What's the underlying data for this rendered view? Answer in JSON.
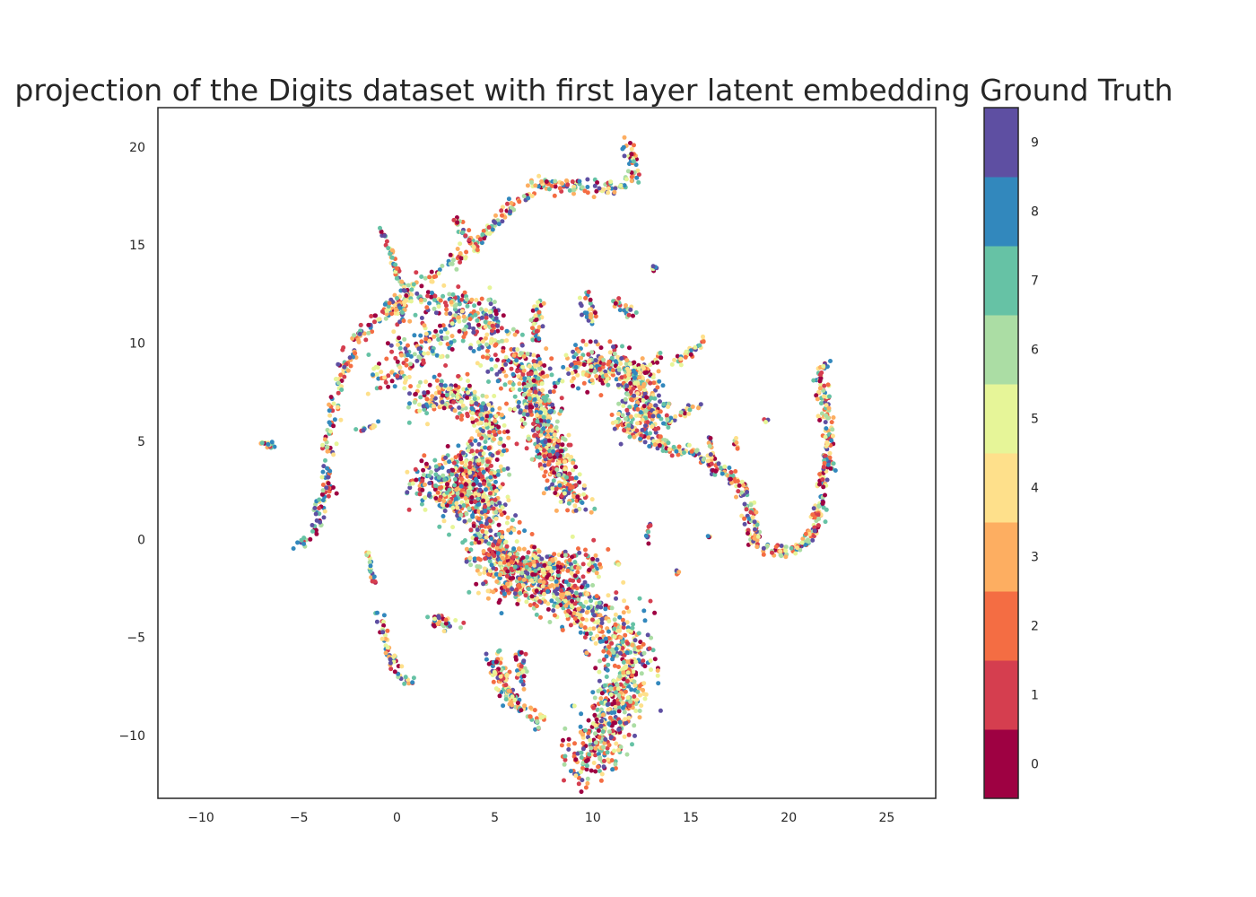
{
  "chart_data": {
    "type": "scatter",
    "title": "projection of the Digits dataset with first layer latent embedding Ground Truth",
    "xlabel": "",
    "ylabel": "",
    "xlim": [
      -12.2,
      27.5
    ],
    "ylim": [
      -13.2,
      22.0
    ],
    "x_ticks": [
      -10,
      -5,
      0,
      5,
      10,
      15,
      20,
      25
    ],
    "y_ticks": [
      -10,
      -5,
      0,
      5,
      10,
      15,
      20
    ],
    "x_tick_labels": [
      "−10",
      "−5",
      "0",
      "5",
      "10",
      "15",
      "20",
      "25"
    ],
    "y_tick_labels": [
      "−10",
      "−5",
      "0",
      "5",
      "10",
      "15",
      "20"
    ],
    "grid": false,
    "colorbar": {
      "labels": [
        "0",
        "1",
        "2",
        "3",
        "4",
        "5",
        "6",
        "7",
        "8",
        "9"
      ],
      "colors": [
        "#9e0142",
        "#d53e4f",
        "#f46d43",
        "#fdae61",
        "#fee08b",
        "#e6f598",
        "#abdda4",
        "#66c2a5",
        "#3288bd",
        "#5e4fa2"
      ],
      "range": [
        -0.5,
        9.5
      ]
    },
    "point_classes": "labels 0-9 mixed uniformly throughout all clusters",
    "structures": [
      {
        "name": "upper-arc",
        "path": [
          [
            -5,
            -0.4
          ],
          [
            -4.2,
            0.5
          ],
          [
            -3.6,
            2.5
          ],
          [
            -3.5,
            5
          ],
          [
            -3,
            8
          ],
          [
            -2,
            10.3
          ],
          [
            -0.5,
            11.8
          ],
          [
            1.5,
            13.3
          ],
          [
            3,
            14.2
          ],
          [
            4.5,
            15.5
          ],
          [
            6,
            17.2
          ],
          [
            7.5,
            18.2
          ],
          [
            9.5,
            17.9
          ],
          [
            11,
            17.8
          ],
          [
            12,
            18.5
          ],
          [
            12.1,
            19.5
          ],
          [
            11.5,
            20.4
          ]
        ],
        "width": 0.35,
        "n": 430
      },
      {
        "name": "upper-band",
        "path": [
          [
            -1,
            8
          ],
          [
            1,
            9.5
          ],
          [
            3,
            11
          ],
          [
            5,
            10.5
          ],
          [
            6,
            8.5
          ],
          [
            7,
            6.5
          ]
        ],
        "width": 1.2,
        "n": 340
      },
      {
        "name": "upper-band-2",
        "path": [
          [
            -0.5,
            11.5
          ],
          [
            2,
            12.5
          ],
          [
            4,
            12
          ],
          [
            5,
            11
          ]
        ],
        "width": 0.7,
        "n": 150
      },
      {
        "name": "left-spike",
        "path": [
          [
            -0.8,
            15.8
          ],
          [
            0,
            13.5
          ],
          [
            0.7,
            12
          ]
        ],
        "width": 0.2,
        "n": 50
      },
      {
        "name": "spike-3",
        "path": [
          [
            3,
            16.3
          ],
          [
            3.8,
            15
          ]
        ],
        "width": 0.2,
        "n": 25
      },
      {
        "name": "main-body",
        "path": [
          [
            1.5,
            3
          ],
          [
            3,
            2
          ],
          [
            4,
            4
          ],
          [
            4.5,
            1
          ],
          [
            5,
            -1
          ],
          [
            6,
            -2.3
          ],
          [
            8,
            -2.5
          ],
          [
            9.5,
            -3.3
          ],
          [
            11,
            -4.5
          ],
          [
            11.8,
            -5.5
          ],
          [
            11.8,
            -7
          ],
          [
            11,
            -9
          ],
          [
            10.3,
            -10.5
          ],
          [
            9.6,
            -11.7
          ]
        ],
        "width": 1.35,
        "n": 1700
      },
      {
        "name": "body-bottom-lobe",
        "path": [
          [
            5.5,
            -1
          ],
          [
            8,
            -1.5
          ],
          [
            10,
            -1
          ]
        ],
        "width": 0.8,
        "n": 200
      },
      {
        "name": "top-left-block",
        "path": [
          [
            1,
            7
          ],
          [
            3,
            7.5
          ],
          [
            4.5,
            6.5
          ],
          [
            5,
            5
          ]
        ],
        "width": 0.9,
        "n": 260
      },
      {
        "name": "central-cluster",
        "path": [
          [
            7,
            9
          ],
          [
            7.3,
            6
          ],
          [
            8,
            4
          ],
          [
            8.8,
            2.5
          ],
          [
            9.2,
            1.8
          ]
        ],
        "width": 0.95,
        "n": 520
      },
      {
        "name": "central-cluster-right",
        "path": [
          [
            9,
            8.5
          ],
          [
            10.5,
            9
          ],
          [
            12,
            8.5
          ],
          [
            13,
            6.5
          ],
          [
            12,
            6
          ]
        ],
        "width": 1.0,
        "n": 420
      },
      {
        "name": "right-tail",
        "path": [
          [
            11,
            6
          ],
          [
            13,
            5
          ],
          [
            15,
            4.5
          ],
          [
            16.5,
            3.8
          ],
          [
            17.5,
            2.8
          ],
          [
            18,
            1.5
          ],
          [
            18.3,
            0
          ],
          [
            19.2,
            -0.7
          ],
          [
            20.5,
            -0.5
          ],
          [
            21.3,
            0.5
          ],
          [
            21.7,
            2.5
          ],
          [
            22,
            4.5
          ],
          [
            21.9,
            6.5
          ],
          [
            21.5,
            8.5
          ]
        ],
        "width": 0.35,
        "n": 430
      },
      {
        "name": "right-small-arc",
        "path": [
          [
            16,
            5.2
          ],
          [
            16.2,
            3.2
          ]
        ],
        "width": 0.15,
        "n": 20
      },
      {
        "name": "far-right-tip",
        "path": [
          [
            21.6,
            8.6
          ],
          [
            22,
            9
          ]
        ],
        "width": 0.15,
        "n": 10
      },
      {
        "name": "stem-top-1",
        "path": [
          [
            7.2,
            12
          ],
          [
            7.1,
            10
          ]
        ],
        "width": 0.3,
        "n": 40
      },
      {
        "name": "stem-top-2",
        "path": [
          [
            9.5,
            12.5
          ],
          [
            10,
            11
          ]
        ],
        "width": 0.3,
        "n": 30
      },
      {
        "name": "stem-top-3",
        "path": [
          [
            11,
            12.3
          ],
          [
            12,
            11.5
          ]
        ],
        "width": 0.25,
        "n": 25
      },
      {
        "name": "fork-right",
        "path": [
          [
            12,
            8
          ],
          [
            13.5,
            9.5
          ]
        ],
        "width": 0.25,
        "n": 25
      },
      {
        "name": "ledge-right-1",
        "path": [
          [
            14,
            8.8
          ],
          [
            15.8,
            10.2
          ]
        ],
        "width": 0.25,
        "n": 30
      },
      {
        "name": "ledge-right-2",
        "path": [
          [
            13,
            5.5
          ],
          [
            15.5,
            7
          ]
        ],
        "width": 0.25,
        "n": 30
      },
      {
        "name": "small-left",
        "path": [
          [
            -7,
            4.9
          ],
          [
            -6.3,
            4.8
          ]
        ],
        "width": 0.2,
        "n": 14
      },
      {
        "name": "small-left-2",
        "path": [
          [
            -2,
            5.5
          ],
          [
            -1,
            5.9
          ]
        ],
        "width": 0.15,
        "n": 14
      },
      {
        "name": "left-descend",
        "path": [
          [
            -1.5,
            -0.3
          ],
          [
            -1.2,
            -2.2
          ]
        ],
        "width": 0.15,
        "n": 20
      },
      {
        "name": "bottom-left-arc",
        "path": [
          [
            -0.9,
            -3.8
          ],
          [
            -0.5,
            -5.6
          ],
          [
            0,
            -6.6
          ],
          [
            0.8,
            -7.5
          ]
        ],
        "width": 0.25,
        "n": 55
      },
      {
        "name": "bottom-small-cluster",
        "path": [
          [
            1.8,
            -4
          ],
          [
            2.8,
            -4.5
          ]
        ],
        "width": 0.4,
        "n": 35
      },
      {
        "name": "bottom-mid-arc",
        "path": [
          [
            5,
            -6
          ],
          [
            5.2,
            -7
          ],
          [
            6.2,
            -8.5
          ],
          [
            7.4,
            -9.3
          ]
        ],
        "width": 0.45,
        "n": 120
      },
      {
        "name": "bottom-mid-arc-2",
        "path": [
          [
            6.3,
            -5.8
          ],
          [
            6.5,
            -7.5
          ]
        ],
        "width": 0.3,
        "n": 30
      },
      {
        "name": "middle-fleck",
        "path": [
          [
            12.8,
            -0.2
          ],
          [
            12.9,
            0.8
          ]
        ],
        "width": 0.15,
        "n": 10
      },
      {
        "name": "isolated-1",
        "path": [
          [
            14.2,
            -1.8
          ],
          [
            14.4,
            -1.6
          ]
        ],
        "width": 0.1,
        "n": 5
      },
      {
        "name": "isolated-2",
        "path": [
          [
            13,
            13.7
          ],
          [
            13.3,
            13.9
          ]
        ],
        "width": 0.1,
        "n": 6
      },
      {
        "name": "isolated-3",
        "path": [
          [
            11.1,
            -1.2
          ],
          [
            11.4,
            -1.3
          ]
        ],
        "width": 0.1,
        "n": 5
      },
      {
        "name": "isolated-4",
        "path": [
          [
            17.2,
            5.2
          ],
          [
            17.4,
            4.6
          ]
        ],
        "width": 0.1,
        "n": 6
      },
      {
        "name": "isolated-5",
        "path": [
          [
            9.6,
            -5.8
          ],
          [
            9.8,
            -5.9
          ]
        ],
        "width": 0.1,
        "n": 4
      },
      {
        "name": "isolated-6",
        "path": [
          [
            18.8,
            6.1
          ],
          [
            18.9,
            6.0
          ]
        ],
        "width": 0.1,
        "n": 3
      },
      {
        "name": "isolated-7",
        "path": [
          [
            15.8,
            0.2
          ],
          [
            15.9,
            0.1
          ]
        ],
        "width": 0.1,
        "n": 3
      }
    ]
  }
}
